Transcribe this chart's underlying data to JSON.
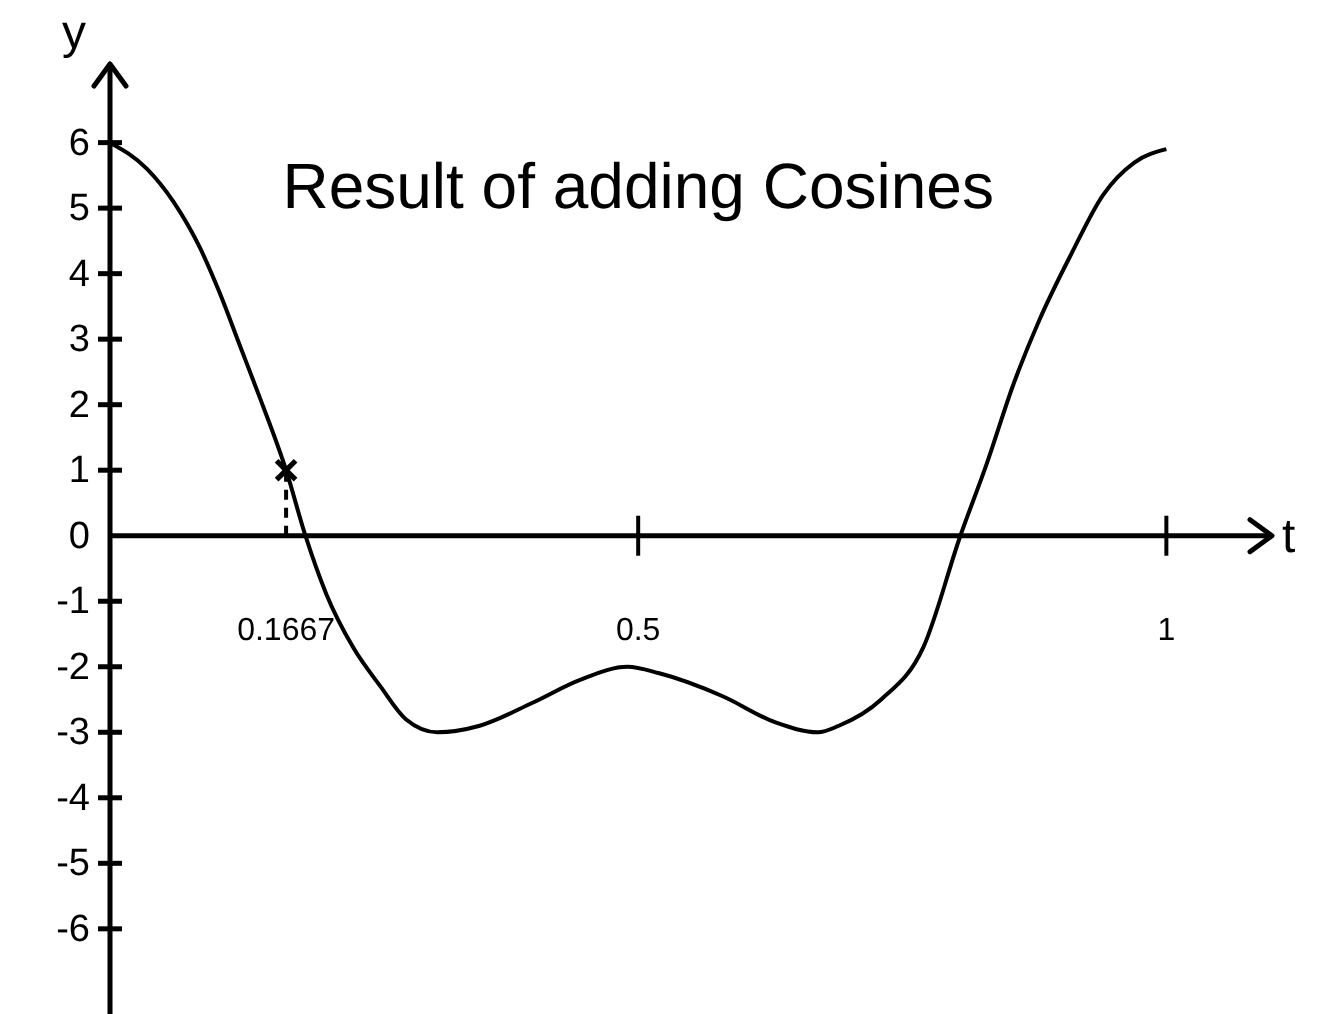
{
  "chart_data": {
    "type": "line",
    "title": "Result of adding Cosines",
    "xlabel": "t",
    "ylabel": "y",
    "xlim": [
      0,
      1.1
    ],
    "ylim": [
      -7.3,
      7.2
    ],
    "xticks": [
      0.1667,
      0.5,
      1
    ],
    "yticks": [
      -6,
      -5,
      -4,
      -3,
      -2,
      -1,
      0,
      1,
      2,
      3,
      4,
      5,
      6
    ],
    "series": [
      {
        "color": "#000000",
        "x": [
          0,
          0.035,
          0.06,
          0.085,
          0.104,
          0.123,
          0.142,
          0.1667,
          0.185,
          0.205,
          0.23,
          0.256,
          0.28,
          0.31,
          0.35,
          0.4,
          0.445,
          0.49,
          0.52,
          0.58,
          0.63,
          0.67,
          0.69,
          0.73,
          0.77,
          0.805,
          0.83,
          0.855,
          0.88,
          0.91,
          0.94,
          0.97,
          1
        ],
        "values": [
          6,
          5.6,
          5.1,
          4.4,
          3.7,
          2.9,
          2.1,
          1,
          0,
          -0.9,
          -1.7,
          -2.3,
          -2.8,
          -3,
          -2.9,
          -2.55,
          -2.2,
          -2,
          -2.1,
          -2.45,
          -2.85,
          -3,
          -2.9,
          -2.5,
          -1.7,
          0,
          1.1,
          2.3,
          3.3,
          4.3,
          5.2,
          5.7,
          5.9
        ]
      },
      {
        "type": "line",
        "color": "#000000",
        "line_style": "dashed",
        "x": [
          0.1667,
          0.1667
        ],
        "values": [
          0,
          1
        ]
      },
      {
        "type": "scatter",
        "color": "#000000",
        "marker": "cross",
        "x": [
          0.1667
        ],
        "values": [
          1
        ]
      }
    ]
  }
}
